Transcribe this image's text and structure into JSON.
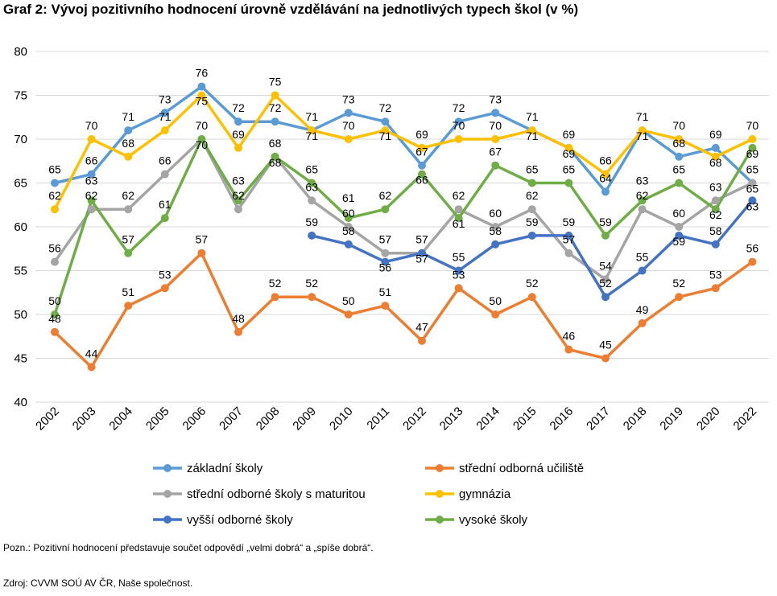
{
  "title": "Graf 2: Vývoj pozitivního hodnocení úrovně vzdělávání na jednotlivých typech škol (v %)",
  "note": "Pozn.: Pozitivní hodnocení představuje součet odpovědí „velmi dobrá“ a „spíše dobrá“.",
  "source": "Zdroj: CVVM SOÚ AV ČR, Naše společnost.",
  "chart_data": {
    "type": "line",
    "x": [
      "2002",
      "2003",
      "2004",
      "2005",
      "2006",
      "2007",
      "2008",
      "2009",
      "2010",
      "2011",
      "2012",
      "2013",
      "2014",
      "2015",
      "2016",
      "2017",
      "2018",
      "2019",
      "2020",
      "2022"
    ],
    "ylim": [
      40,
      80
    ],
    "yticks": [
      "40",
      "45",
      "50",
      "55",
      "60",
      "65",
      "70",
      "75",
      "80"
    ],
    "grid": "horizontal",
    "legend_position": "bottom",
    "series": [
      {
        "name": "základní školy",
        "color": "#5b9bd5",
        "values": [
          65,
          66,
          71,
          73,
          76,
          72,
          72,
          71,
          73,
          72,
          67,
          72,
          73,
          71,
          69,
          64,
          71,
          68,
          69,
          65
        ]
      },
      {
        "name": "střední odborná učiliště",
        "color": "#ed7d31",
        "values": [
          48,
          44,
          51,
          53,
          57,
          48,
          52,
          52,
          50,
          51,
          47,
          53,
          50,
          52,
          46,
          45,
          49,
          52,
          53,
          56
        ]
      },
      {
        "name": "střední odborné školy s maturitou",
        "color": "#a5a5a5",
        "values": [
          56,
          62,
          62,
          66,
          70,
          62,
          68,
          63,
          60,
          57,
          57,
          62,
          60,
          62,
          57,
          54,
          62,
          60,
          63,
          65
        ]
      },
      {
        "name": "gymnázia",
        "color": "#ffc000",
        "values": [
          62,
          70,
          68,
          71,
          75,
          69,
          75,
          71,
          70,
          71,
          69,
          70,
          70,
          71,
          69,
          66,
          71,
          70,
          68,
          70
        ]
      },
      {
        "name": "vyšší odborné školy",
        "color": "#4472c4",
        "values": [
          null,
          null,
          null,
          null,
          null,
          null,
          null,
          59,
          58,
          56,
          57,
          55,
          58,
          59,
          59,
          52,
          55,
          59,
          58,
          63
        ]
      },
      {
        "name": "vysoké školy",
        "color": "#70ad47",
        "values": [
          50,
          63,
          57,
          61,
          70,
          63,
          68,
          65,
          61,
          62,
          66,
          61,
          67,
          65,
          65,
          59,
          63,
          65,
          62,
          69
        ]
      }
    ]
  }
}
